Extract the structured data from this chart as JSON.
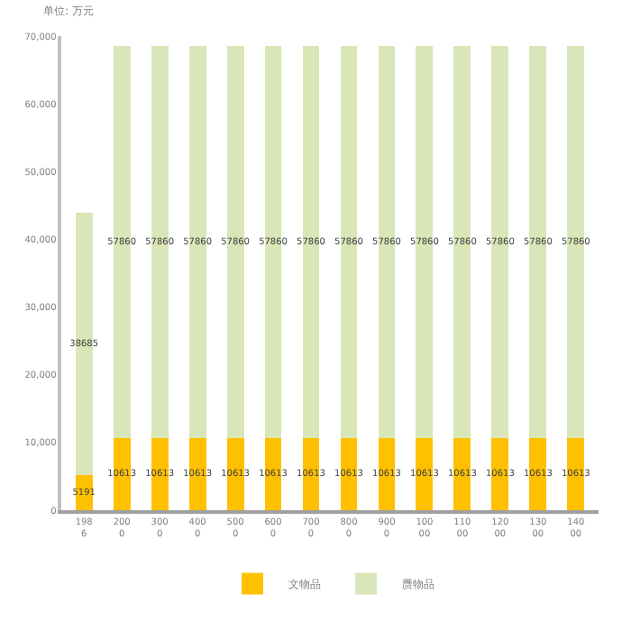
{
  "chart_data": {
    "type": "bar",
    "stacked": true,
    "subtitle": "单位: 万元",
    "categories": [
      "1986",
      "2000",
      "3000",
      "4000",
      "5000",
      "6000",
      "7000",
      "8000",
      "9000",
      "10000",
      "11000",
      "12000",
      "13000",
      "14000"
    ],
    "series": [
      {
        "name": "文物品",
        "color": "#ffc000",
        "values": [
          5191,
          10613,
          10613,
          10613,
          10613,
          10613,
          10613,
          10613,
          10613,
          10613,
          10613,
          10613,
          10613,
          10613
        ]
      },
      {
        "name": "赝物品",
        "color": "#d9e6b8",
        "values": [
          38685,
          57860,
          57860,
          57860,
          57860,
          57860,
          57860,
          57860,
          57860,
          57860,
          57860,
          57860,
          57860,
          57860
        ]
      }
    ],
    "ylim": [
      0,
      70000
    ],
    "yticks": [
      {
        "value": 0,
        "label": "0"
      },
      {
        "value": 10000,
        "label": "10,000"
      },
      {
        "value": 20000,
        "label": "20,000"
      },
      {
        "value": 30000,
        "label": "30,000"
      },
      {
        "value": 40000,
        "label": "40,000"
      },
      {
        "value": 50000,
        "label": "50,000"
      },
      {
        "value": 60000,
        "label": "60,000"
      },
      {
        "value": 70000,
        "label": "70,000"
      }
    ],
    "data_labels": true,
    "legend": "bottom"
  }
}
